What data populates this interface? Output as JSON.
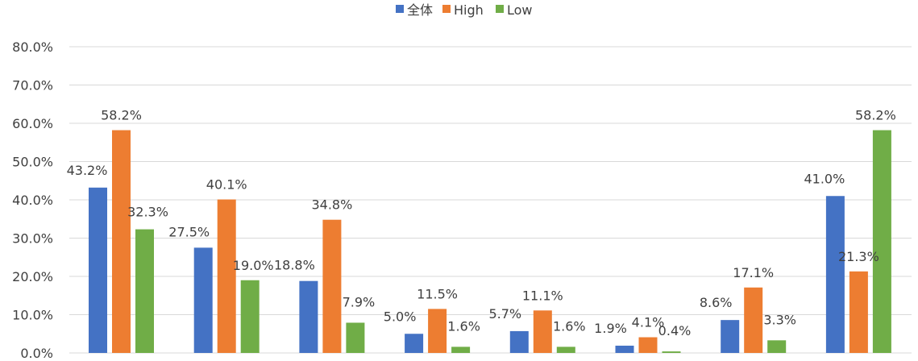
{
  "chart_data": {
    "type": "bar",
    "title": "",
    "xlabel": "",
    "ylabel": "",
    "categories": [
      "",
      "",
      "",
      "",
      "",
      "",
      "",
      ""
    ],
    "series": [
      {
        "name": "全体",
        "color": "#4472C4",
        "values": [
          43.2,
          27.5,
          18.8,
          5.0,
          5.7,
          1.9,
          8.6,
          41.0
        ],
        "labels": [
          "43.2%",
          "27.5%",
          "18.8%",
          "5.0%",
          "5.7%",
          "1.9%",
          "8.6%",
          "41.0%"
        ]
      },
      {
        "name": "High",
        "color": "#ED7D31",
        "values": [
          58.2,
          40.1,
          34.8,
          11.5,
          11.1,
          4.1,
          17.1,
          21.3
        ],
        "labels": [
          "58.2%",
          "40.1%",
          "34.8%",
          "11.5%",
          "11.1%",
          "4.1%",
          "17.1%",
          "21.3%"
        ]
      },
      {
        "name": "Low",
        "color": "#70AD47",
        "values": [
          32.3,
          19.0,
          7.9,
          1.6,
          1.6,
          0.4,
          3.3,
          58.2
        ],
        "labels": [
          "32.3%",
          "19.0%",
          "7.9%",
          "1.6%",
          "1.6%",
          "0.4%",
          "3.3%",
          "58.2%"
        ]
      }
    ],
    "ylim": [
      0,
      80
    ],
    "yticks": [
      0,
      10,
      20,
      30,
      40,
      50,
      60,
      70,
      80
    ],
    "ytick_labels": [
      "0.0%",
      "10.0%",
      "20.0%",
      "30.0%",
      "40.0%",
      "50.0%",
      "60.0%",
      "70.0%",
      "80.0%"
    ],
    "grid": true,
    "legend_position": "top-center"
  }
}
